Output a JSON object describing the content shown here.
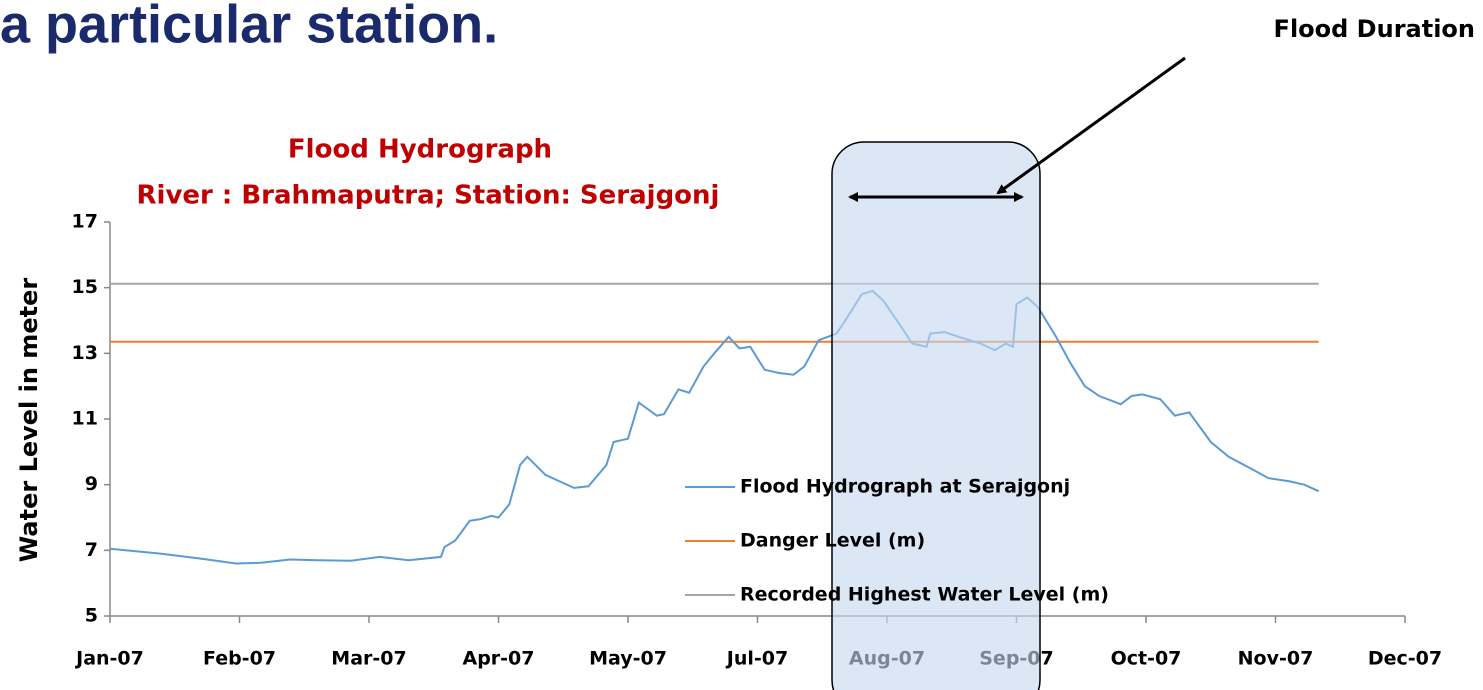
{
  "heading": "a particular station.",
  "annotation": "Flood Duration",
  "chart_data": {
    "type": "line",
    "title": "Flood Hydrograph",
    "subtitle": "River : Brahmaputra;  Station: Serajgonj",
    "y_label": "Water Level in meter",
    "xlim": [
      0,
      360
    ],
    "xticks": [
      {
        "value": 0,
        "label": "Jan-07"
      },
      {
        "value": 36,
        "label": "Feb-07"
      },
      {
        "value": 72,
        "label": "Mar-07"
      },
      {
        "value": 108,
        "label": "Apr-07"
      },
      {
        "value": 144,
        "label": "May-07"
      },
      {
        "value": 180,
        "label": "Jul-07"
      },
      {
        "value": 216,
        "label": "Aug-07"
      },
      {
        "value": 252,
        "label": "Sep-07"
      },
      {
        "value": 288,
        "label": "Oct-07"
      },
      {
        "value": 324,
        "label": "Nov-07"
      },
      {
        "value": 360,
        "label": "Dec-07"
      }
    ],
    "ylim": [
      5,
      17
    ],
    "yticks": [
      5,
      7,
      9,
      11,
      13,
      15,
      17
    ],
    "grid": false,
    "series": [
      {
        "name": "Flood Hydrograph at Serajgonj",
        "color": "#5b9bd5",
        "x": [
          0,
          14,
          25,
          35,
          42,
          50,
          58,
          67,
          75,
          83,
          92,
          93,
          96,
          100,
          103,
          106,
          108,
          111,
          114,
          116,
          121,
          125,
          129,
          133,
          138,
          140,
          144,
          147,
          152,
          154,
          158,
          161,
          165,
          168,
          172,
          175,
          178,
          182,
          186,
          190,
          193,
          197,
          202,
          205,
          209,
          212,
          215,
          220,
          223,
          227,
          228,
          232,
          236,
          242,
          246,
          249,
          251,
          252,
          255,
          258,
          263,
          267,
          271,
          275,
          281,
          284,
          287,
          292,
          296,
          300,
          306,
          311,
          317,
          322,
          328,
          332,
          336
        ],
        "values": [
          7.05,
          6.9,
          6.75,
          6.6,
          6.62,
          6.72,
          6.7,
          6.68,
          6.8,
          6.7,
          6.8,
          7.1,
          7.3,
          7.9,
          7.95,
          8.05,
          8.0,
          8.4,
          9.6,
          9.85,
          9.3,
          9.1,
          8.9,
          8.95,
          9.6,
          10.3,
          10.4,
          11.5,
          11.1,
          11.15,
          11.9,
          11.8,
          12.6,
          13.0,
          13.5,
          13.15,
          13.2,
          12.5,
          12.4,
          12.35,
          12.6,
          13.4,
          13.6,
          14.1,
          14.8,
          14.9,
          14.6,
          13.8,
          13.3,
          13.2,
          13.6,
          13.65,
          13.5,
          13.3,
          13.1,
          13.3,
          13.2,
          14.5,
          14.7,
          14.4,
          13.5,
          12.7,
          12.0,
          11.7,
          11.45,
          11.7,
          11.75,
          11.6,
          11.1,
          11.2,
          10.3,
          9.85,
          9.5,
          9.2,
          9.1,
          9.0,
          8.8
        ]
      },
      {
        "name": "Danger Level (m)",
        "color": "#ed7d31",
        "x": [
          0,
          336
        ],
        "values": [
          13.35,
          13.35
        ]
      },
      {
        "name": "Recorded Highest Water Level (m)",
        "color": "#a5a5a5",
        "x": [
          0,
          336
        ],
        "values": [
          15.12,
          15.12
        ]
      }
    ]
  }
}
